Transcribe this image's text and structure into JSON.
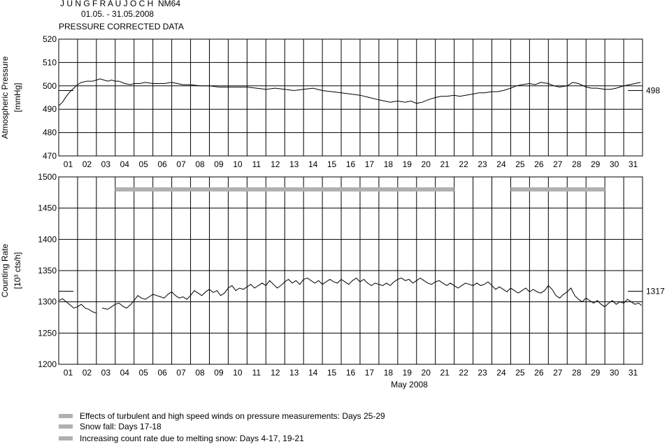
{
  "header": {
    "station": "J U N G F R A U J O C H  NM64",
    "period": "01.05. - 31.05.2008",
    "subtitle": "PRESSURE CORRECTED DATA"
  },
  "days": [
    "01",
    "02",
    "03",
    "04",
    "05",
    "06",
    "07",
    "08",
    "09",
    "10",
    "11",
    "12",
    "13",
    "14",
    "15",
    "16",
    "17",
    "18",
    "19",
    "20",
    "21",
    "22",
    "23",
    "24",
    "25",
    "26",
    "27",
    "28",
    "29",
    "30",
    "31"
  ],
  "month_label": "May 2008",
  "legend": [
    {
      "label": "Effects of turbulent and high speed winds on pressure measurements: Days 25-29",
      "color": "#b0b0b0"
    },
    {
      "label": "Snow fall: Days 17-18",
      "color": "#b0b0b0"
    },
    {
      "label": "Increasing count rate due to melting snow: Days 4-17, 19-21",
      "color": "#b0b0b0"
    }
  ],
  "chart_data": [
    {
      "type": "line",
      "ylabel": "Atmospheric Pressure",
      "yunit": "[mmHg]",
      "ylim": [
        470,
        520
      ],
      "yticks": [
        470,
        480,
        490,
        500,
        510,
        520
      ],
      "xlim": [
        1,
        32
      ],
      "reference": {
        "value": 498,
        "label": "498"
      },
      "series": [
        {
          "points": [
            [
              1.0,
              491.5
            ],
            [
              1.2,
              493
            ],
            [
              1.4,
              495.5
            ],
            [
              1.6,
              497.5
            ],
            [
              1.8,
              499
            ],
            [
              2.0,
              500.5
            ],
            [
              2.2,
              501.5
            ],
            [
              2.5,
              502
            ],
            [
              2.8,
              502
            ],
            [
              3.0,
              502.5
            ],
            [
              3.2,
              503
            ],
            [
              3.4,
              502.5
            ],
            [
              3.6,
              502
            ],
            [
              3.8,
              502.5
            ],
            [
              4.0,
              502
            ],
            [
              4.2,
              502
            ],
            [
              4.5,
              501
            ],
            [
              4.8,
              500.5
            ],
            [
              5.0,
              501
            ],
            [
              5.3,
              501
            ],
            [
              5.6,
              501.5
            ],
            [
              6.0,
              501
            ],
            [
              6.3,
              501
            ],
            [
              6.6,
              501
            ],
            [
              7.0,
              501.5
            ],
            [
              7.3,
              501
            ],
            [
              7.6,
              500.5
            ],
            [
              8.0,
              500.5
            ],
            [
              8.5,
              500
            ],
            [
              9.0,
              500
            ],
            [
              9.5,
              499.5
            ],
            [
              10.0,
              499.5
            ],
            [
              10.5,
              499.5
            ],
            [
              11.0,
              499.5
            ],
            [
              11.5,
              499
            ],
            [
              12.0,
              498.5
            ],
            [
              12.5,
              499
            ],
            [
              13.0,
              498.5
            ],
            [
              13.5,
              498
            ],
            [
              14.0,
              498.5
            ],
            [
              14.5,
              499
            ],
            [
              15.0,
              498
            ],
            [
              15.5,
              497.5
            ],
            [
              16.0,
              497
            ],
            [
              16.5,
              496.5
            ],
            [
              17.0,
              496
            ],
            [
              17.5,
              495
            ],
            [
              18.0,
              494
            ],
            [
              18.3,
              493.5
            ],
            [
              18.6,
              493
            ],
            [
              19.0,
              493.5
            ],
            [
              19.4,
              493
            ],
            [
              19.7,
              493.5
            ],
            [
              20.0,
              492.5
            ],
            [
              20.3,
              493
            ],
            [
              20.6,
              494
            ],
            [
              21.0,
              495
            ],
            [
              21.3,
              495.5
            ],
            [
              21.6,
              495.5
            ],
            [
              22.0,
              496
            ],
            [
              22.3,
              495.5
            ],
            [
              22.6,
              496
            ],
            [
              23.0,
              496.5
            ],
            [
              23.3,
              497
            ],
            [
              23.6,
              497
            ],
            [
              24.0,
              497.5
            ],
            [
              24.3,
              497.5
            ],
            [
              24.6,
              498
            ],
            [
              25.0,
              499
            ],
            [
              25.3,
              500
            ],
            [
              25.6,
              500.5
            ],
            [
              26.0,
              501
            ],
            [
              26.3,
              500.5
            ],
            [
              26.6,
              501.5
            ],
            [
              27.0,
              501
            ],
            [
              27.3,
              500
            ],
            [
              27.6,
              499.5
            ],
            [
              28.0,
              500
            ],
            [
              28.3,
              501.5
            ],
            [
              28.6,
              501
            ],
            [
              29.0,
              499.5
            ],
            [
              29.3,
              499
            ],
            [
              29.6,
              499
            ],
            [
              30.0,
              498.5
            ],
            [
              30.3,
              498.5
            ],
            [
              30.6,
              499
            ],
            [
              31.0,
              500
            ],
            [
              31.3,
              500.5
            ],
            [
              31.6,
              501
            ],
            [
              31.9,
              501.5
            ]
          ]
        }
      ]
    },
    {
      "type": "line",
      "ylabel": "Counting Rate",
      "yunit": "[10³ cts/h]",
      "ylim": [
        1200,
        1500
      ],
      "yticks": [
        1200,
        1250,
        1300,
        1350,
        1400,
        1450,
        1500
      ],
      "xlim": [
        1,
        32
      ],
      "xlabel": "May 2008",
      "reference": {
        "value": 1317,
        "label": "1317"
      },
      "bands": [
        {
          "from": 4,
          "to": 22,
          "value": 1480
        },
        {
          "from": 25,
          "to": 30,
          "value": 1480
        }
      ],
      "series": [
        {
          "points": [
            [
              1.0,
              1302
            ],
            [
              1.2,
              1305
            ],
            [
              1.4,
              1300
            ],
            [
              1.6,
              1295
            ],
            [
              1.8,
              1290
            ],
            [
              2.0,
              1292
            ],
            [
              2.2,
              1296
            ],
            [
              2.4,
              1290
            ],
            [
              2.6,
              1288
            ],
            [
              2.8,
              1284
            ],
            [
              3.0,
              1282
            ]
          ]
        },
        {
          "points": [
            [
              3.3,
              1290
            ],
            [
              3.6,
              1288
            ],
            [
              3.8,
              1292
            ],
            [
              4.0,
              1296
            ],
            [
              4.2,
              1298
            ],
            [
              4.4,
              1293
            ],
            [
              4.6,
              1290
            ],
            [
              4.8,
              1295
            ],
            [
              5.0,
              1302
            ],
            [
              5.2,
              1310
            ],
            [
              5.4,
              1306
            ],
            [
              5.6,
              1304
            ],
            [
              5.8,
              1308
            ],
            [
              6.0,
              1312
            ],
            [
              6.2,
              1310
            ],
            [
              6.4,
              1308
            ],
            [
              6.6,
              1306
            ],
            [
              6.8,
              1312
            ],
            [
              7.0,
              1316
            ],
            [
              7.2,
              1310
            ],
            [
              7.4,
              1306
            ],
            [
              7.6,
              1308
            ],
            [
              7.8,
              1304
            ],
            [
              8.0,
              1310
            ],
            [
              8.2,
              1318
            ],
            [
              8.4,
              1314
            ],
            [
              8.6,
              1310
            ],
            [
              8.8,
              1316
            ],
            [
              9.0,
              1320
            ],
            [
              9.2,
              1315
            ],
            [
              9.4,
              1318
            ],
            [
              9.6,
              1310
            ],
            [
              9.8,
              1314
            ],
            [
              10.0,
              1322
            ],
            [
              10.2,
              1326
            ],
            [
              10.4,
              1318
            ],
            [
              10.6,
              1322
            ],
            [
              10.8,
              1320
            ],
            [
              11.0,
              1324
            ],
            [
              11.2,
              1328
            ],
            [
              11.4,
              1322
            ],
            [
              11.6,
              1326
            ],
            [
              11.8,
              1330
            ],
            [
              12.0,
              1326
            ],
            [
              12.2,
              1334
            ],
            [
              12.4,
              1328
            ],
            [
              12.6,
              1322
            ],
            [
              12.8,
              1326
            ],
            [
              13.0,
              1332
            ],
            [
              13.2,
              1336
            ],
            [
              13.4,
              1330
            ],
            [
              13.6,
              1334
            ],
            [
              13.8,
              1328
            ],
            [
              14.0,
              1336
            ],
            [
              14.2,
              1338
            ],
            [
              14.4,
              1334
            ],
            [
              14.6,
              1330
            ],
            [
              14.8,
              1334
            ],
            [
              15.0,
              1328
            ],
            [
              15.2,
              1332
            ],
            [
              15.4,
              1336
            ],
            [
              15.6,
              1332
            ],
            [
              15.8,
              1330
            ],
            [
              16.0,
              1336
            ],
            [
              16.2,
              1332
            ],
            [
              16.4,
              1328
            ],
            [
              16.6,
              1334
            ],
            [
              16.8,
              1338
            ],
            [
              17.0,
              1332
            ],
            [
              17.2,
              1336
            ],
            [
              17.4,
              1330
            ],
            [
              17.6,
              1326
            ],
            [
              17.8,
              1330
            ],
            [
              18.0,
              1328
            ],
            [
              18.2,
              1326
            ],
            [
              18.4,
              1330
            ],
            [
              18.6,
              1326
            ],
            [
              18.8,
              1332
            ],
            [
              19.0,
              1336
            ],
            [
              19.2,
              1338
            ],
            [
              19.4,
              1334
            ],
            [
              19.6,
              1336
            ],
            [
              19.8,
              1330
            ],
            [
              20.0,
              1334
            ],
            [
              20.2,
              1338
            ],
            [
              20.4,
              1334
            ],
            [
              20.6,
              1330
            ],
            [
              20.8,
              1328
            ],
            [
              21.0,
              1332
            ],
            [
              21.2,
              1334
            ],
            [
              21.4,
              1330
            ],
            [
              21.6,
              1326
            ],
            [
              21.8,
              1330
            ],
            [
              22.0,
              1326
            ],
            [
              22.2,
              1322
            ],
            [
              22.4,
              1326
            ],
            [
              22.6,
              1330
            ],
            [
              22.8,
              1328
            ],
            [
              23.0,
              1326
            ],
            [
              23.2,
              1330
            ],
            [
              23.4,
              1326
            ],
            [
              23.6,
              1328
            ],
            [
              23.8,
              1332
            ],
            [
              24.0,
              1326
            ],
            [
              24.2,
              1320
            ],
            [
              24.4,
              1324
            ],
            [
              24.6,
              1320
            ],
            [
              24.8,
              1316
            ],
            [
              25.0,
              1322
            ],
            [
              25.2,
              1318
            ],
            [
              25.4,
              1314
            ],
            [
              25.6,
              1318
            ],
            [
              25.8,
              1322
            ],
            [
              26.0,
              1316
            ],
            [
              26.2,
              1320
            ],
            [
              26.4,
              1316
            ],
            [
              26.6,
              1314
            ],
            [
              26.8,
              1318
            ],
            [
              27.0,
              1326
            ],
            [
              27.2,
              1320
            ],
            [
              27.4,
              1310
            ],
            [
              27.6,
              1306
            ],
            [
              27.8,
              1312
            ],
            [
              28.0,
              1316
            ],
            [
              28.2,
              1322
            ],
            [
              28.4,
              1310
            ],
            [
              28.6,
              1304
            ],
            [
              28.8,
              1300
            ],
            [
              29.0,
              1306
            ],
            [
              29.2,
              1302
            ],
            [
              29.4,
              1298
            ],
            [
              29.6,
              1302
            ],
            [
              29.8,
              1296
            ],
            [
              30.0,
              1292
            ],
            [
              30.2,
              1298
            ],
            [
              30.4,
              1302
            ],
            [
              30.6,
              1296
            ],
            [
              30.8,
              1300
            ],
            [
              31.0,
              1298
            ],
            [
              31.2,
              1304
            ],
            [
              31.4,
              1300
            ],
            [
              31.6,
              1296
            ],
            [
              31.8,
              1298
            ],
            [
              31.95,
              1294
            ]
          ]
        }
      ]
    }
  ]
}
